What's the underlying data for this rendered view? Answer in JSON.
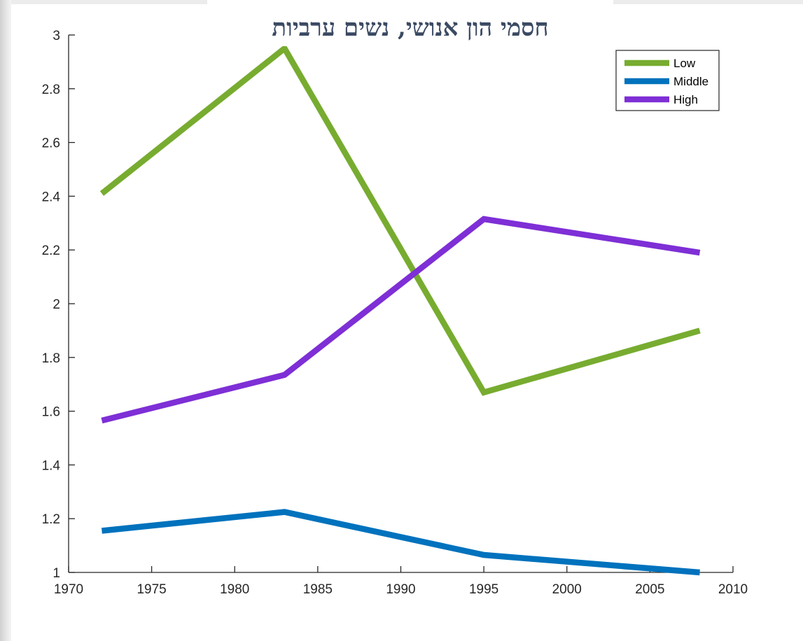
{
  "chart_data": {
    "type": "line",
    "title": "חסמי הון אנושי, נשים ערביות",
    "xlabel": "",
    "ylabel": "",
    "xlim": [
      1970,
      2010
    ],
    "ylim": [
      1,
      3
    ],
    "xticks": [
      "1970",
      "1975",
      "1980",
      "1985",
      "1990",
      "1995",
      "2000",
      "2005",
      "2010"
    ],
    "yticks": [
      "1",
      "1.2",
      "1.4",
      "1.6",
      "1.8",
      "2",
      "2.2",
      "2.4",
      "2.6",
      "2.8",
      "3"
    ],
    "x": [
      1972,
      1983,
      1995,
      2008
    ],
    "series": [
      {
        "name": "Low",
        "color": "#77ac30",
        "values": [
          2.41,
          2.95,
          1.67,
          1.9
        ]
      },
      {
        "name": "Middle",
        "color": "#0072bd",
        "values": [
          1.155,
          1.225,
          1.065,
          1.0
        ]
      },
      {
        "name": "High",
        "color": "#7e2fd6",
        "values": [
          1.565,
          1.735,
          2.315,
          2.19
        ]
      }
    ],
    "legend_position": "top-right",
    "grid": false
  }
}
